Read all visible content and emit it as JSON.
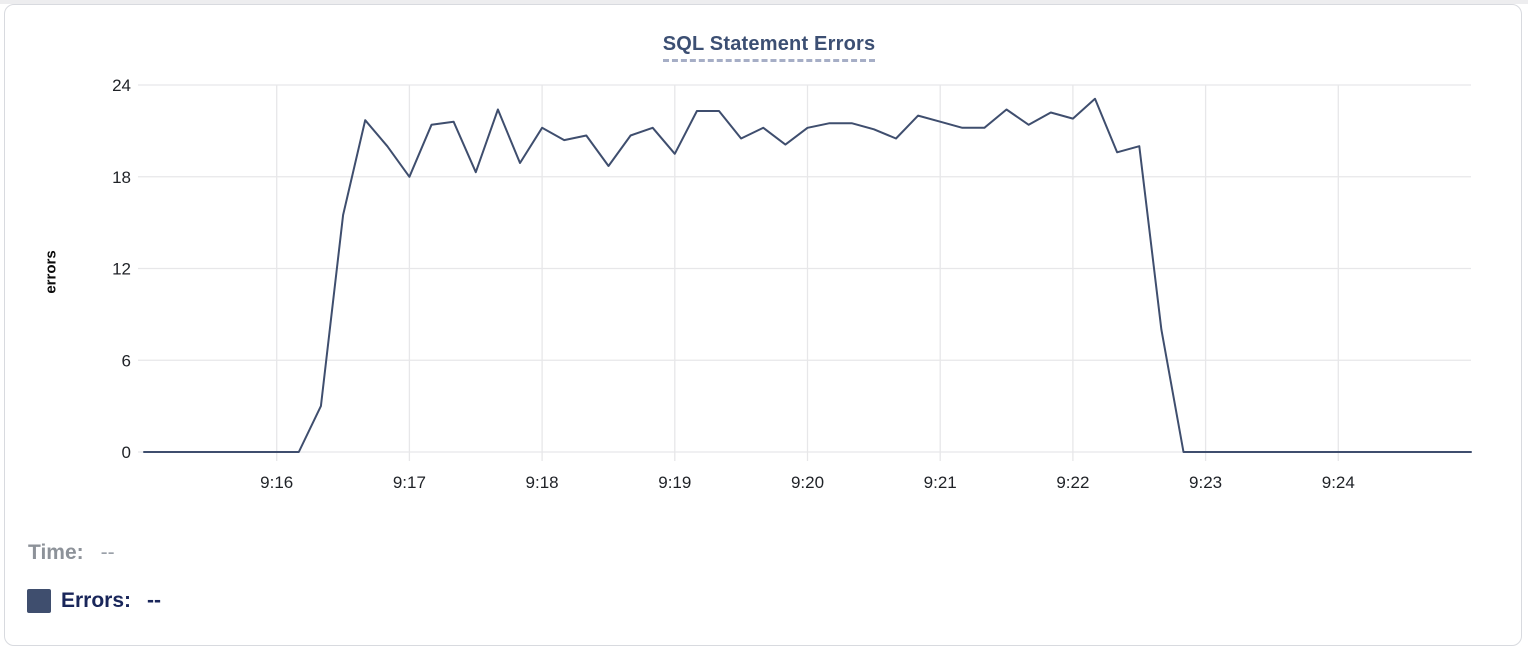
{
  "card": {
    "title": "SQL Statement Errors"
  },
  "readout": {
    "time_label": "Time:",
    "time_value": "--",
    "errors_label": "Errors:",
    "errors_value": "--"
  },
  "colors": {
    "line": "#3f4e6e",
    "grid": "#e7e7e9",
    "title": "#3c4f73",
    "title_underline": "#a6aec6",
    "axis_text": "#1f2227",
    "time_label_gray": "#8d9299",
    "errors_label_navy": "#19265a",
    "card_border": "#d8dadf",
    "swatch": "#3f4e6e"
  },
  "chart_data": {
    "type": "line",
    "title": "SQL Statement Errors",
    "xlabel": "",
    "ylabel": "errors",
    "ylim": [
      0,
      24
    ],
    "y_ticks": [
      0,
      6,
      12,
      18,
      24
    ],
    "x_tick_labels": [
      "9:16",
      "9:17",
      "9:18",
      "9:19",
      "9:20",
      "9:21",
      "9:22",
      "9:23",
      "9:24"
    ],
    "x_start": "9:15:00",
    "x_end": "9:25:00",
    "interval_seconds": 10,
    "grid": true,
    "legend_position": "below-left",
    "series": [
      {
        "name": "Errors",
        "color": "#3f4e6e",
        "values": [
          0,
          0,
          0,
          0,
          0,
          0,
          0,
          0,
          3,
          15.5,
          21.7,
          20,
          18,
          21.4,
          21.6,
          18.3,
          22.4,
          18.9,
          21.2,
          20.4,
          20.7,
          18.7,
          20.7,
          21.2,
          19.5,
          22.3,
          22.3,
          20.5,
          21.2,
          20.1,
          21.2,
          21.5,
          21.5,
          21.1,
          20.5,
          22,
          21.6,
          21.2,
          21.2,
          22.4,
          21.4,
          22.2,
          21.8,
          23.1,
          19.6,
          20,
          8,
          0,
          0,
          0,
          0,
          0,
          0,
          0,
          0,
          0,
          0,
          0,
          0,
          0,
          0
        ]
      }
    ]
  },
  "layout_note": ""
}
